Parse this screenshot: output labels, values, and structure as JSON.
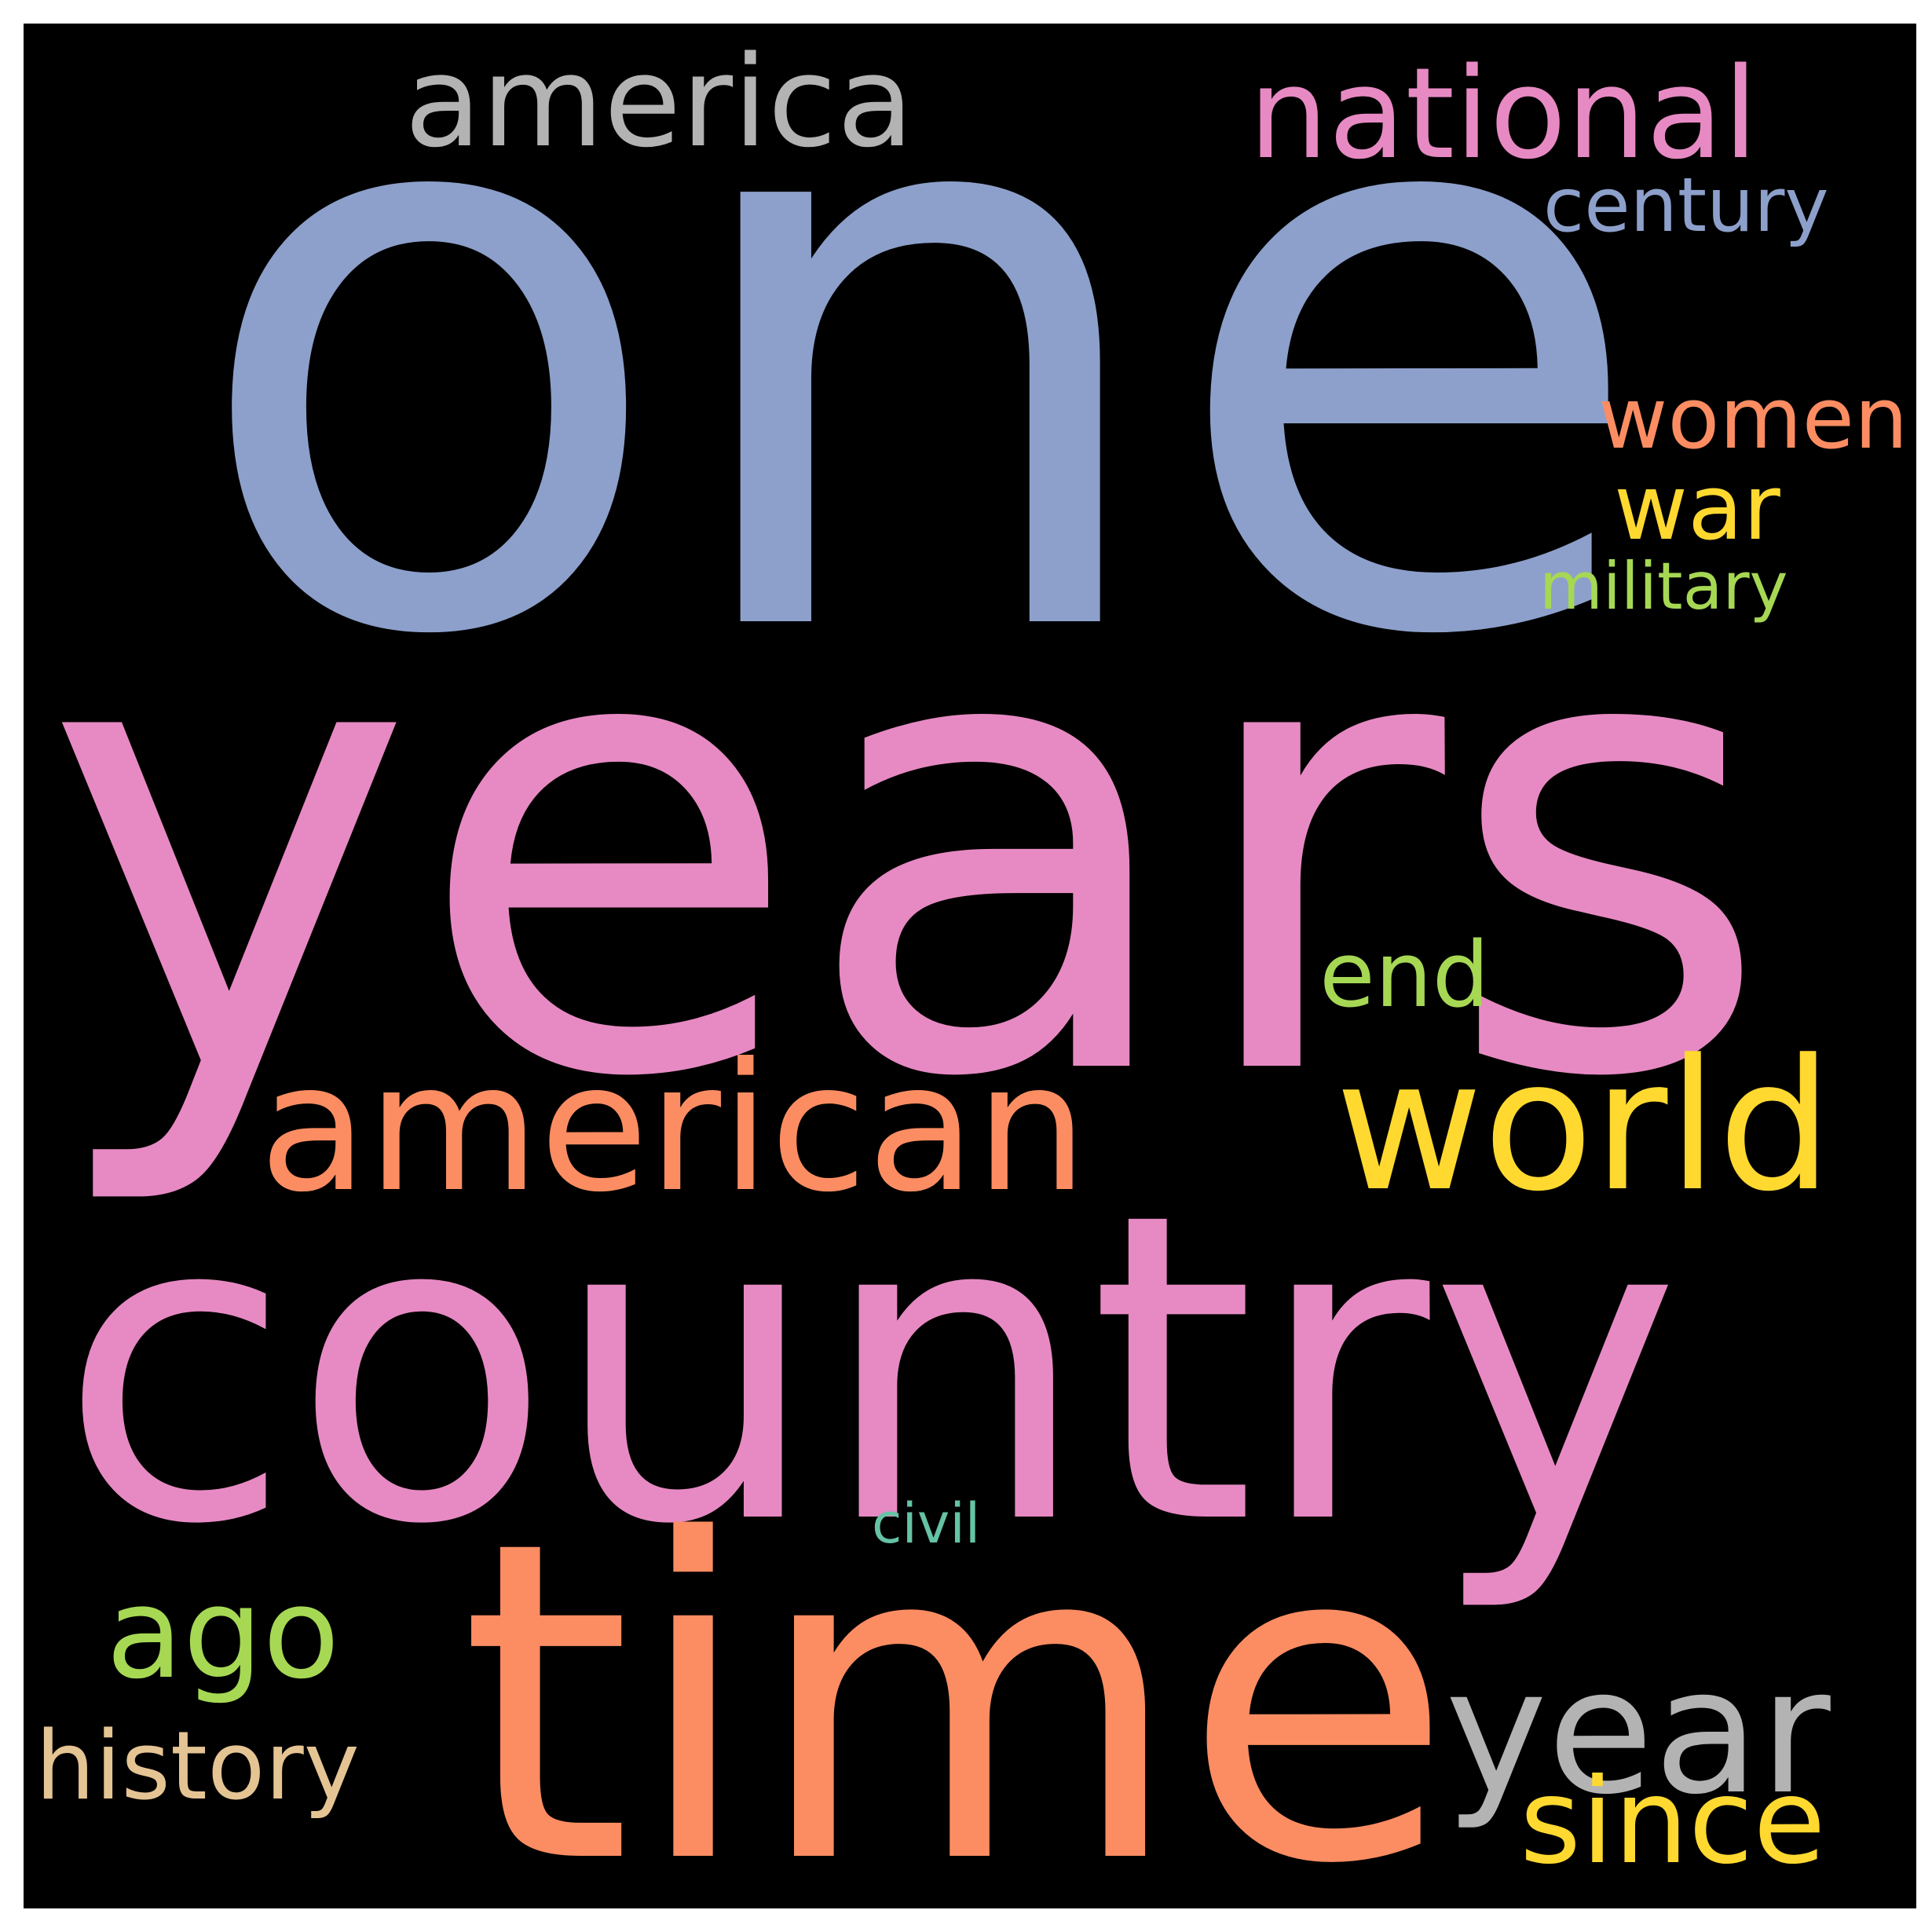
{
  "background_color": "#000000",
  "words": [
    {
      "id": "one",
      "text": "one",
      "color": "#8da0cb"
    },
    {
      "id": "years",
      "text": "years",
      "color": "#e78ac3"
    },
    {
      "id": "country",
      "text": "country",
      "color": "#e78ac3"
    },
    {
      "id": "time",
      "text": "time",
      "color": "#fc8d62"
    },
    {
      "id": "american",
      "text": "american",
      "color": "#fc8d62"
    },
    {
      "id": "world",
      "text": "world",
      "color": "#ffd92f"
    },
    {
      "id": "america",
      "text": "america",
      "color": "#b3b3b3"
    },
    {
      "id": "national",
      "text": "national",
      "color": "#e78ac3"
    },
    {
      "id": "year",
      "text": "year",
      "color": "#b3b3b3"
    },
    {
      "id": "century",
      "text": "century",
      "color": "#8da0cb"
    },
    {
      "id": "women",
      "text": "women",
      "color": "#fc8d62"
    },
    {
      "id": "war",
      "text": "war",
      "color": "#ffd92f"
    },
    {
      "id": "military",
      "text": "military",
      "color": "#a6d854"
    },
    {
      "id": "end",
      "text": "end",
      "color": "#a6d854"
    },
    {
      "id": "ago",
      "text": "ago",
      "color": "#a6d854"
    },
    {
      "id": "history",
      "text": "history",
      "color": "#e5c494"
    },
    {
      "id": "since",
      "text": "since",
      "color": "#ffd92f"
    },
    {
      "id": "civil",
      "text": "civil",
      "color": "#66c2a5"
    }
  ]
}
